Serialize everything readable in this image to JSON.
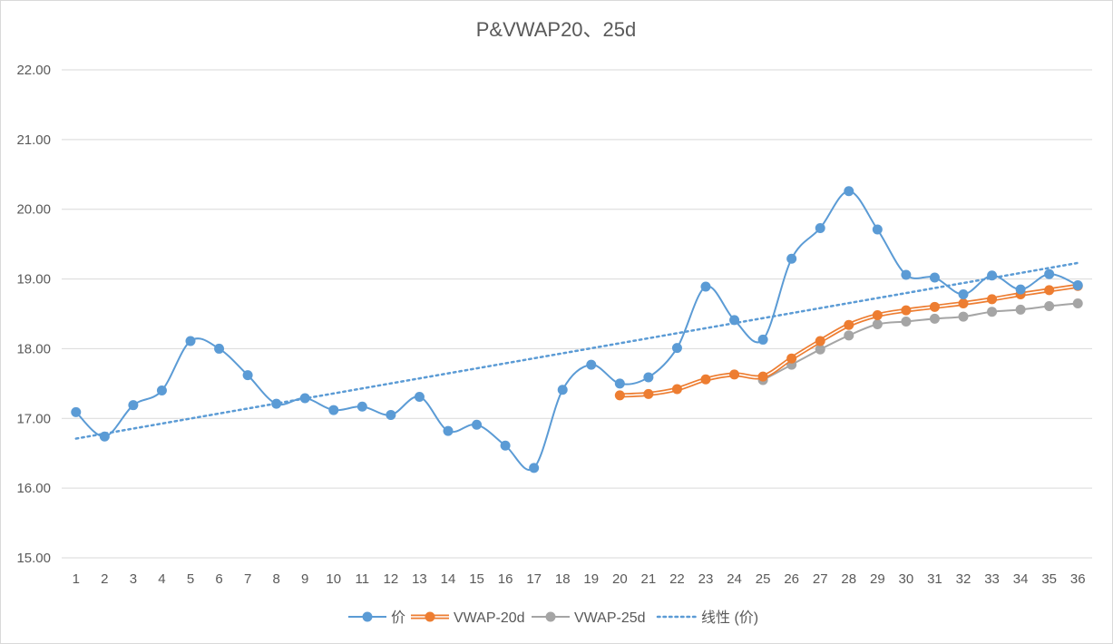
{
  "chart_data": {
    "type": "line",
    "title": "P&VWAP20、25d",
    "xlabel": "",
    "ylabel": "",
    "x": [
      1,
      2,
      3,
      4,
      5,
      6,
      7,
      8,
      9,
      10,
      11,
      12,
      13,
      14,
      15,
      16,
      17,
      18,
      19,
      20,
      21,
      22,
      23,
      24,
      25,
      26,
      27,
      28,
      29,
      30,
      31,
      32,
      33,
      34,
      35,
      36
    ],
    "ylim": [
      15,
      22
    ],
    "yticks": [
      "15.00",
      "16.00",
      "17.00",
      "18.00",
      "19.00",
      "20.00",
      "21.00",
      "22.00"
    ],
    "grid": "horizontal",
    "legend_position": "bottom",
    "series": [
      {
        "name": "价",
        "color": "#5b9bd5",
        "style": "smooth-line-markers",
        "values": [
          17.09,
          16.74,
          17.19,
          17.4,
          18.11,
          18.0,
          17.62,
          17.21,
          17.29,
          17.12,
          17.17,
          17.05,
          17.31,
          16.82,
          16.91,
          16.61,
          16.29,
          17.41,
          17.77,
          17.5,
          17.59,
          18.01,
          18.89,
          18.41,
          18.13,
          19.29,
          19.73,
          20.26,
          19.71,
          19.06,
          19.02,
          18.78,
          19.05,
          18.85,
          19.07,
          18.91
        ]
      },
      {
        "name": "VWAP-20d",
        "color": "#ed7d31",
        "style": "double-line-markers",
        "values": [
          null,
          null,
          null,
          null,
          null,
          null,
          null,
          null,
          null,
          null,
          null,
          null,
          null,
          null,
          null,
          null,
          null,
          null,
          null,
          17.33,
          17.35,
          17.42,
          17.56,
          17.63,
          17.6,
          17.86,
          18.11,
          18.34,
          18.48,
          18.55,
          18.6,
          18.65,
          18.71,
          18.78,
          18.84,
          18.9
        ]
      },
      {
        "name": "VWAP-25d",
        "color": "#a5a5a5",
        "style": "line-markers",
        "values": [
          null,
          null,
          null,
          null,
          null,
          null,
          null,
          null,
          null,
          null,
          null,
          null,
          null,
          null,
          null,
          null,
          null,
          null,
          null,
          null,
          null,
          null,
          null,
          null,
          17.55,
          17.77,
          17.99,
          18.19,
          18.35,
          18.39,
          18.43,
          18.46,
          18.53,
          18.56,
          18.61,
          18.65
        ]
      },
      {
        "name": "线性 (价)",
        "color": "#5b9bd5",
        "style": "dotted-trendline",
        "values": [
          16.71,
          16.78,
          16.86,
          16.93,
          17.0,
          17.07,
          17.14,
          17.22,
          17.29,
          17.36,
          17.43,
          17.5,
          17.57,
          17.65,
          17.72,
          17.79,
          17.86,
          17.93,
          18.01,
          18.08,
          18.15,
          18.22,
          18.29,
          18.37,
          18.44,
          18.51,
          18.58,
          18.65,
          18.73,
          18.8,
          18.87,
          18.94,
          19.01,
          19.09,
          19.16,
          19.23
        ]
      }
    ]
  }
}
